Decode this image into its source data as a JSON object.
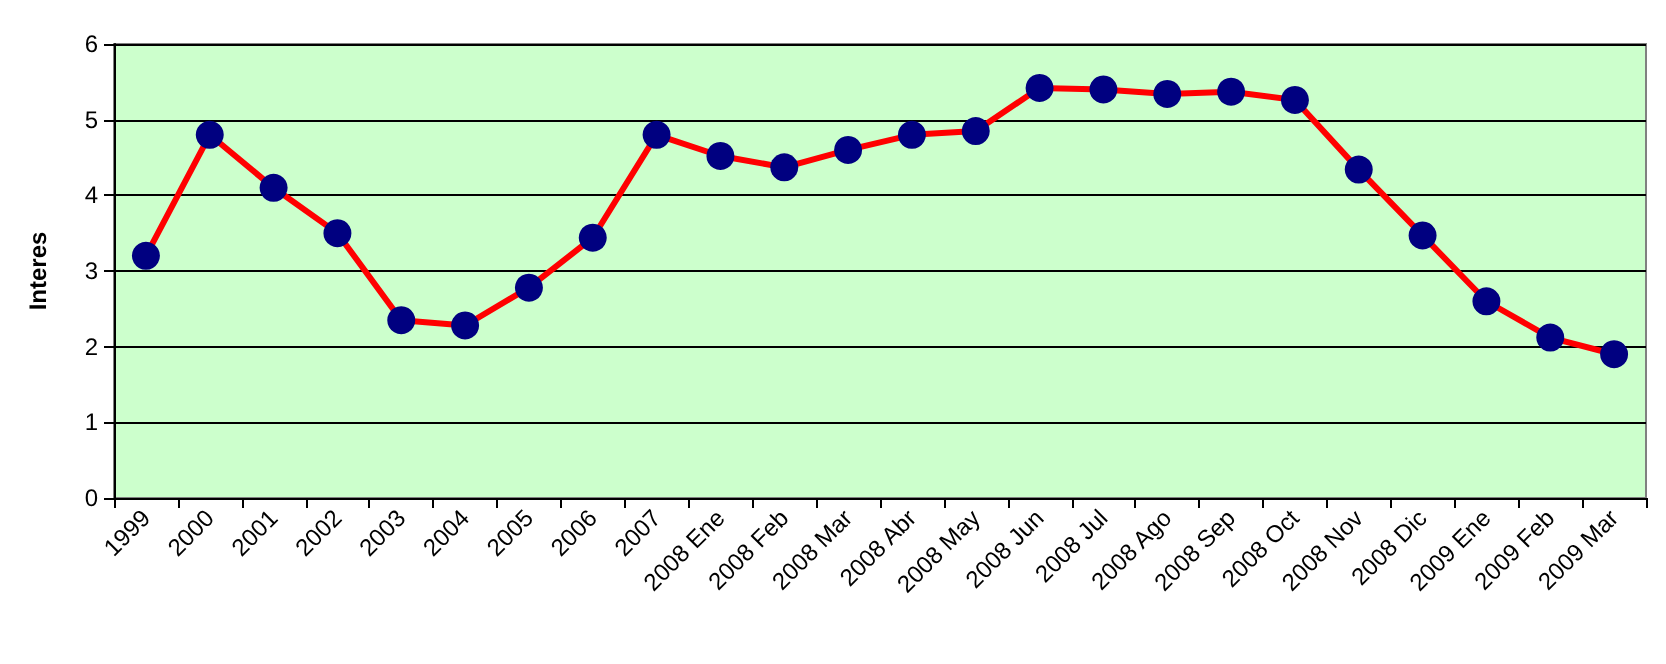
{
  "chart_data": {
    "type": "line",
    "ylabel": "Interes",
    "categories": [
      "1999",
      "2000",
      "2001",
      "2002",
      "2003",
      "2004",
      "2005",
      "2006",
      "2007",
      "2008 Ene",
      "2008 Feb",
      "2008 Mar",
      "2008 Abr",
      "2008 May",
      "2008 Jun",
      "2008 Jul",
      "2008 Ago",
      "2008 Sep",
      "2008 Oct",
      "2008 Nov",
      "2008 Dic",
      "2009 Ene",
      "2009 Feb",
      "2009 Mar"
    ],
    "series": [
      {
        "color": "#ff0000",
        "values": [
          3.2,
          4.8,
          4.1,
          3.5,
          2.35,
          2.28,
          2.78,
          3.44,
          4.8,
          4.52,
          4.37,
          4.6,
          4.8,
          4.85,
          5.42,
          5.4,
          5.34,
          5.37,
          5.26,
          4.34,
          3.47,
          2.6,
          2.12,
          1.9
        ]
      }
    ],
    "ylim": [
      0,
      6
    ],
    "yticks": [
      0,
      1,
      2,
      3,
      4,
      5,
      6
    ],
    "grid": "y",
    "marker": "circle",
    "line_style": "solid"
  }
}
